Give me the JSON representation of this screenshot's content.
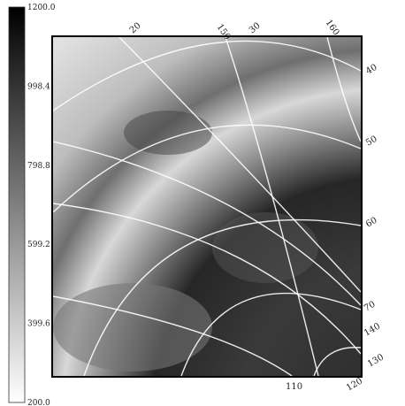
{
  "colorbar": {
    "labels": [
      "1200.0",
      "998.4",
      "798.8",
      "599.2",
      "399.6",
      "200.0"
    ]
  },
  "grid_labels": {
    "top": [
      "20",
      "150",
      "30",
      "160"
    ],
    "right": [
      "40",
      "50",
      "60",
      "70",
      "140",
      "130",
      "120"
    ],
    "bottom": [
      "110"
    ]
  }
}
